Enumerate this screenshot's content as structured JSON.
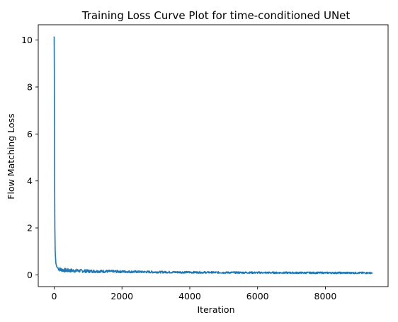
{
  "chart_data": {
    "type": "line",
    "title": "Training Loss Curve Plot for time-conditioned UNet",
    "xlabel": "Iteration",
    "ylabel": "Flow Matching Loss",
    "xlim": [
      -470,
      9850
    ],
    "ylim": [
      -0.5,
      10.65
    ],
    "xticks": [
      0,
      2000,
      4000,
      6000,
      8000
    ],
    "xtick_labels": [
      "0",
      "2000",
      "4000",
      "6000",
      "8000"
    ],
    "yticks": [
      0,
      2,
      4,
      6,
      8,
      10
    ],
    "ytick_labels": [
      "0",
      "2",
      "4",
      "6",
      "8",
      "10"
    ],
    "grid": false,
    "legend": null,
    "series": [
      {
        "color": "#1f77b4",
        "x": [
          0,
          5,
          10,
          20,
          30,
          50,
          75,
          100,
          150,
          200,
          300,
          400,
          600,
          800,
          1000,
          1500,
          2000,
          2500,
          3000,
          3500,
          4000,
          5000,
          6000,
          7000,
          8000,
          9000,
          9380
        ],
        "y": [
          10.15,
          8.5,
          5.0,
          2.0,
          1.0,
          0.5,
          0.35,
          0.3,
          0.25,
          0.22,
          0.2,
          0.19,
          0.18,
          0.17,
          0.16,
          0.15,
          0.14,
          0.13,
          0.12,
          0.115,
          0.11,
          0.1,
          0.095,
          0.09,
          0.088,
          0.085,
          0.085
        ]
      }
    ]
  }
}
